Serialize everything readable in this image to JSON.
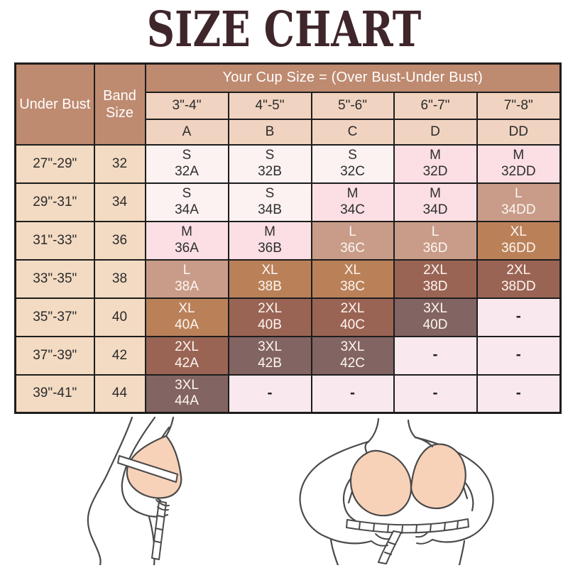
{
  "title": "SIZE CHART",
  "colors": {
    "title_text": "#3f262b",
    "table_border": "#1d1d1d",
    "header_tan": "#be8a70",
    "subheader_tan": "#f0d3c0",
    "side_column": "#f3dac2",
    "levels": {
      "S": "#fdf2f2",
      "M": "#fbdfe4",
      "L": "#c89c88",
      "XL": "#ba8159",
      "2XL": "#9a6454",
      "3XL": "#826462",
      "dash": "#f9e9ee"
    },
    "skin_fill": "#f8d2b8",
    "line_art": "#4a4a4a"
  },
  "table": {
    "corner": {
      "under_bust": "Under Bust",
      "band_size": "Band Size"
    },
    "cup_banner": "Your Cup Size = (Over Bust-Under Bust)",
    "cup_ranges": [
      "3\"-4\"",
      "4\"-5\"",
      "5\"-6\"",
      "6\"-7\"",
      "7\"-8\""
    ],
    "cup_letters": [
      "A",
      "B",
      "C",
      "D",
      "DD"
    ],
    "rows": [
      {
        "under_bust": "27\"-29\"",
        "band": "32",
        "cells": [
          {
            "size": "S",
            "code": "32A",
            "level": "S"
          },
          {
            "size": "S",
            "code": "32B",
            "level": "S"
          },
          {
            "size": "S",
            "code": "32C",
            "level": "S"
          },
          {
            "size": "M",
            "code": "32D",
            "level": "M"
          },
          {
            "size": "M",
            "code": "32DD",
            "level": "M"
          }
        ]
      },
      {
        "under_bust": "29\"-31\"",
        "band": "34",
        "cells": [
          {
            "size": "S",
            "code": "34A",
            "level": "S"
          },
          {
            "size": "S",
            "code": "34B",
            "level": "S"
          },
          {
            "size": "M",
            "code": "34C",
            "level": "M"
          },
          {
            "size": "M",
            "code": "34D",
            "level": "M"
          },
          {
            "size": "L",
            "code": "34DD",
            "level": "L"
          }
        ]
      },
      {
        "under_bust": "31\"-33\"",
        "band": "36",
        "cells": [
          {
            "size": "M",
            "code": "36A",
            "level": "M"
          },
          {
            "size": "M",
            "code": "36B",
            "level": "M"
          },
          {
            "size": "L",
            "code": "36C",
            "level": "L"
          },
          {
            "size": "L",
            "code": "36D",
            "level": "L"
          },
          {
            "size": "XL",
            "code": "36DD",
            "level": "XL"
          }
        ]
      },
      {
        "under_bust": "33\"-35\"",
        "band": "38",
        "cells": [
          {
            "size": "L",
            "code": "38A",
            "level": "L"
          },
          {
            "size": "XL",
            "code": "38B",
            "level": "XL"
          },
          {
            "size": "XL",
            "code": "38C",
            "level": "XL"
          },
          {
            "size": "2XL",
            "code": "38D",
            "level": "2XL"
          },
          {
            "size": "2XL",
            "code": "38DD",
            "level": "2XL"
          }
        ]
      },
      {
        "under_bust": "35\"-37\"",
        "band": "40",
        "cells": [
          {
            "size": "XL",
            "code": "40A",
            "level": "XL"
          },
          {
            "size": "2XL",
            "code": "40B",
            "level": "2XL"
          },
          {
            "size": "2XL",
            "code": "40C",
            "level": "2XL"
          },
          {
            "size": "3XL",
            "code": "40D",
            "level": "3XL"
          },
          {
            "size": "-",
            "code": "",
            "level": "dash"
          }
        ]
      },
      {
        "under_bust": "37\"-39\"",
        "band": "42",
        "cells": [
          {
            "size": "2XL",
            "code": "42A",
            "level": "2XL"
          },
          {
            "size": "3XL",
            "code": "42B",
            "level": "3XL"
          },
          {
            "size": "3XL",
            "code": "42C",
            "level": "3XL"
          },
          {
            "size": "-",
            "code": "",
            "level": "dash"
          },
          {
            "size": "-",
            "code": "",
            "level": "dash"
          }
        ]
      },
      {
        "under_bust": "39\"-41\"",
        "band": "44",
        "cells": [
          {
            "size": "3XL",
            "code": "44A",
            "level": "3XL"
          },
          {
            "size": "-",
            "code": "",
            "level": "dash"
          },
          {
            "size": "-",
            "code": "",
            "level": "dash"
          },
          {
            "size": "-",
            "code": "",
            "level": "dash"
          },
          {
            "size": "-",
            "code": "",
            "level": "dash"
          }
        ]
      }
    ]
  },
  "illustrations": {
    "left": "side view - measuring over bust with tape",
    "right": "front view wearing bra - measuring under bust with tape"
  }
}
